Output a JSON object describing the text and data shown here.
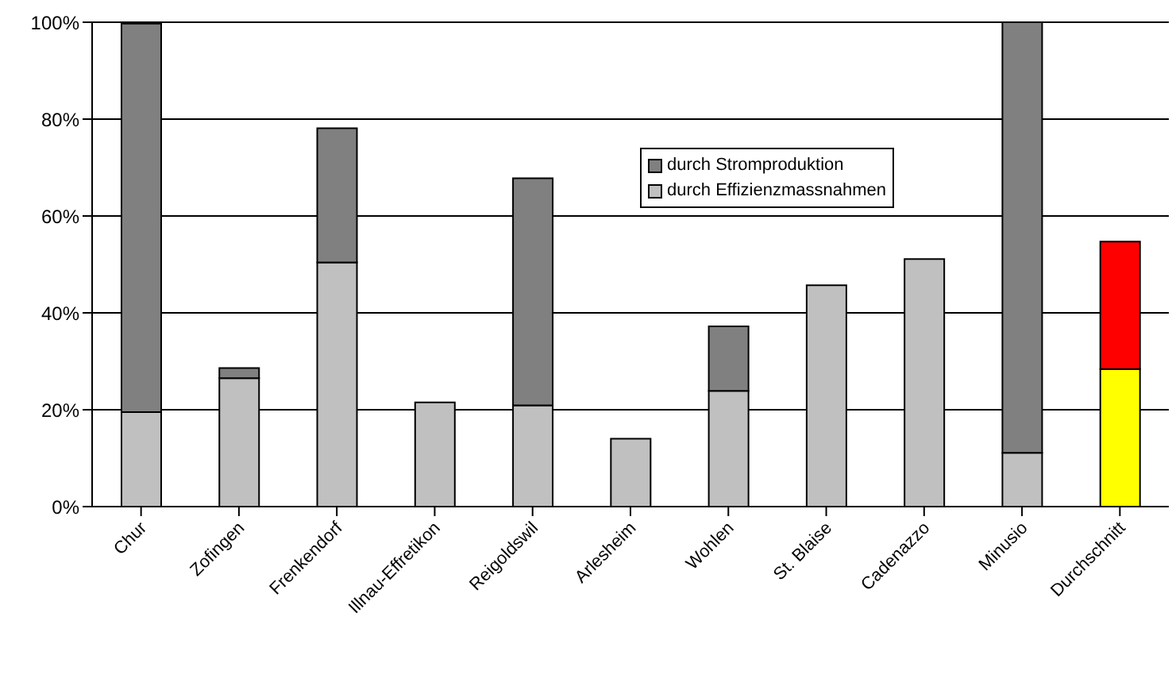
{
  "chart_data": {
    "type": "bar",
    "stacked": true,
    "categories": [
      "Chur",
      "Zofingen",
      "Frenkendorf",
      "Illnau-Effretikon",
      "Reigoldswil",
      "Arlesheim",
      "Wohlen",
      "St. Blaise",
      "Cadenazzo",
      "Minusio",
      "Durchschnitt"
    ],
    "series": [
      {
        "name": "durch Effizienzmassnahmen",
        "color": "#c0c0c0",
        "colors": [
          "#c0c0c0",
          "#c0c0c0",
          "#c0c0c0",
          "#c0c0c0",
          "#c0c0c0",
          "#c0c0c0",
          "#c0c0c0",
          "#c0c0c0",
          "#c0c0c0",
          "#c0c0c0",
          "#ffff00"
        ],
        "values": [
          19.5,
          26.5,
          50.4,
          21.5,
          20.9,
          14.0,
          23.9,
          45.7,
          51.1,
          11.1,
          28.4
        ]
      },
      {
        "name": "durch Stromproduktion",
        "color": "#808080",
        "colors": [
          "#808080",
          "#808080",
          "#808080",
          "#808080",
          "#808080",
          "#808080",
          "#808080",
          "#808080",
          "#808080",
          "#808080",
          "#ff0000"
        ],
        "values": [
          80.2,
          2.1,
          27.7,
          null,
          46.9,
          null,
          13.3,
          null,
          null,
          88.9,
          26.3
        ]
      }
    ],
    "ylim": [
      0,
      100
    ],
    "yticks": [
      {
        "value": 0,
        "label": "0%"
      },
      {
        "value": 20,
        "label": "20%"
      },
      {
        "value": 40,
        "label": "40%"
      },
      {
        "value": 60,
        "label": "60%"
      },
      {
        "value": 80,
        "label": "80%"
      },
      {
        "value": 100,
        "label": "100%"
      }
    ],
    "grid": "y",
    "legend": "top"
  }
}
